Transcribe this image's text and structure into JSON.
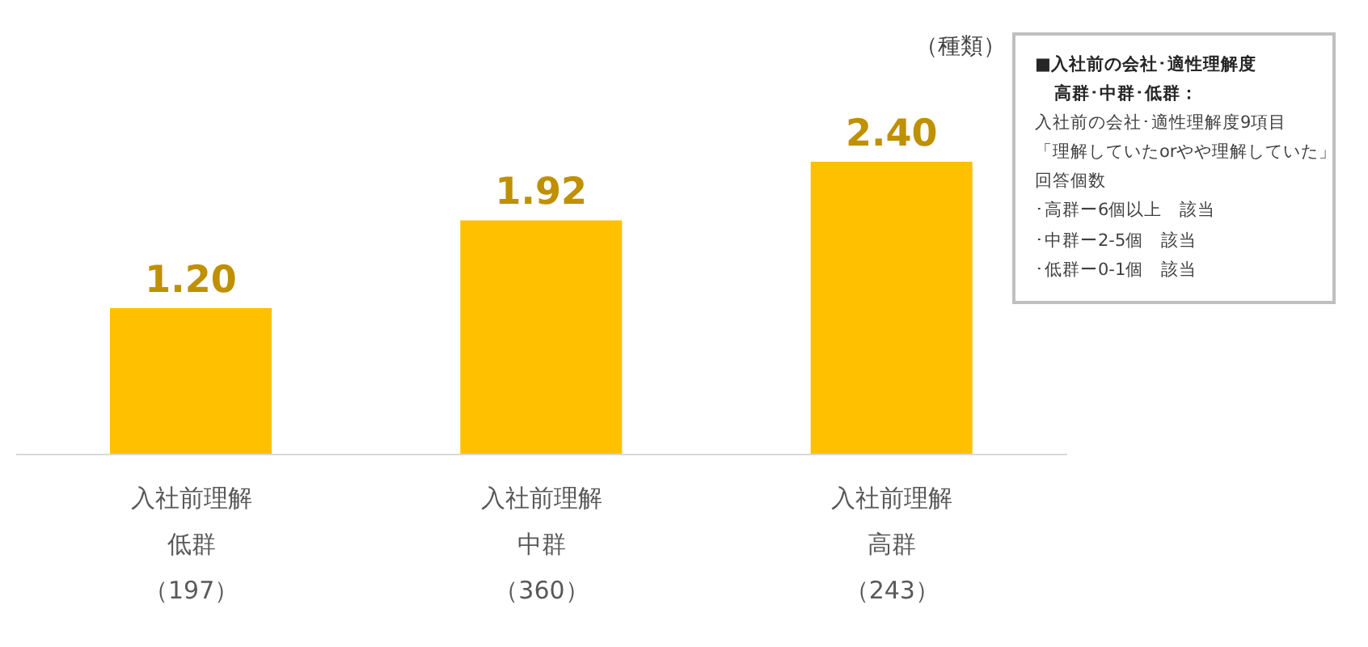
{
  "chart_data": {
    "type": "bar",
    "categories": [
      "入社前理解低群（197）",
      "入社前理解中群（360）",
      "入社前理解高群（243）"
    ],
    "values": [
      1.2,
      1.92,
      2.4
    ],
    "value_labels": [
      "1.20",
      "1.92",
      "2.40"
    ],
    "color": "#ffc000",
    "ylabel": "（種類）",
    "annotations": [
      "■入社前の会社･適性理解度",
      "高群･中群･低群：",
      "入社前の会社･適性理解度9項目",
      "「理解していたorやや理解していた」",
      "回答個数",
      "･高群ー6個以上　該当",
      "･中群ー2-5個　該当",
      "･低群ー0-1個　該当"
    ]
  }
}
